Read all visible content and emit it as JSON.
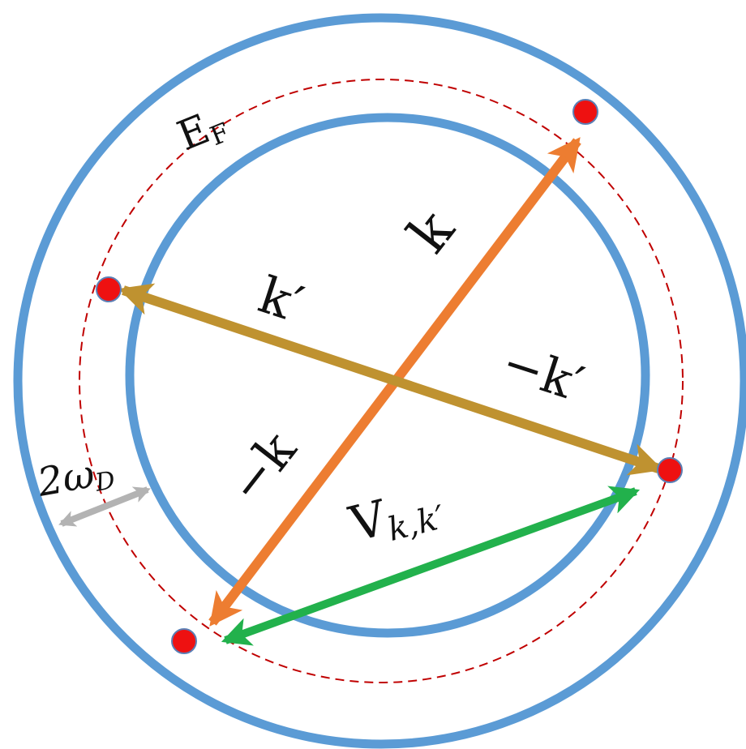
{
  "labels": {
    "fermi": "E",
    "fermi_sub": "F",
    "k": "k",
    "neg_k": "−k",
    "k_prime": "k′",
    "neg_k_prime": "−k′",
    "interaction": "V",
    "interaction_sub": "k,k′",
    "shell_width": "2ω",
    "shell_width_sub": "D"
  },
  "colors": {
    "shell_circle": "#5b9bd5",
    "fermi_circle": "#c00000",
    "k_arrow": "#ed7d31",
    "k_prime_arrow": "#bf9230",
    "interaction_arrow": "#22b14c",
    "width_arrow": "#b3b3b3",
    "electron_fill": "#ee1111",
    "electron_stroke": "#5b7fb5"
  }
}
